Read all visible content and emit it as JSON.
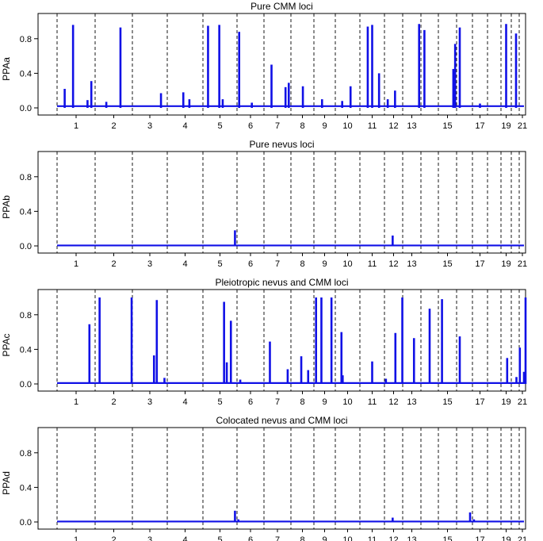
{
  "chart_data": [
    {
      "type": "line",
      "title": "Pure CMM loci",
      "ylabel": "PPAa",
      "ylim": [
        0,
        1.0
      ],
      "yticks": [
        "0.0",
        "0.4",
        "0.8"
      ],
      "chromosome_labels": [
        "1",
        "2",
        "3",
        "4",
        "5",
        "6",
        "7",
        "8",
        "9",
        "10",
        "11",
        "12",
        "13",
        "15",
        "17",
        "19",
        "21"
      ],
      "baseline": 0.02,
      "peaks": [
        {
          "chrom": 1,
          "pos": 0.2,
          "value": 0.22
        },
        {
          "chrom": 1,
          "pos": 0.42,
          "value": 0.96
        },
        {
          "chrom": 1,
          "pos": 0.8,
          "value": 0.09
        },
        {
          "chrom": 1,
          "pos": 0.9,
          "value": 0.31
        },
        {
          "chrom": 2,
          "pos": 0.3,
          "value": 0.07
        },
        {
          "chrom": 2,
          "pos": 0.68,
          "value": 0.93
        },
        {
          "chrom": 3,
          "pos": 0.82,
          "value": 0.17
        },
        {
          "chrom": 4,
          "pos": 0.45,
          "value": 0.18
        },
        {
          "chrom": 4,
          "pos": 0.62,
          "value": 0.1
        },
        {
          "chrom": 5,
          "pos": 0.15,
          "value": 0.95
        },
        {
          "chrom": 5,
          "pos": 0.48,
          "value": 0.96
        },
        {
          "chrom": 5,
          "pos": 0.58,
          "value": 0.1
        },
        {
          "chrom": 6,
          "pos": 0.08,
          "value": 0.88
        },
        {
          "chrom": 6,
          "pos": 0.55,
          "value": 0.06
        },
        {
          "chrom": 7,
          "pos": 0.28,
          "value": 0.5
        },
        {
          "chrom": 7,
          "pos": 0.8,
          "value": 0.24
        },
        {
          "chrom": 7,
          "pos": 0.92,
          "value": 0.29
        },
        {
          "chrom": 8,
          "pos": 0.52,
          "value": 0.25
        },
        {
          "chrom": 9,
          "pos": 0.38,
          "value": 0.1
        },
        {
          "chrom": 10,
          "pos": 0.28,
          "value": 0.08
        },
        {
          "chrom": 10,
          "pos": 0.62,
          "value": 0.25
        },
        {
          "chrom": 11,
          "pos": 0.32,
          "value": 0.94
        },
        {
          "chrom": 11,
          "pos": 0.5,
          "value": 0.96
        },
        {
          "chrom": 11,
          "pos": 0.78,
          "value": 0.4
        },
        {
          "chrom": 12,
          "pos": 0.18,
          "value": 0.1
        },
        {
          "chrom": 12,
          "pos": 0.58,
          "value": 0.2
        },
        {
          "chrom": 13,
          "pos": 0.9,
          "value": 0.97
        },
        {
          "chrom": 14,
          "pos": 0.2,
          "value": 0.9
        },
        {
          "chrom": 15,
          "pos": 0.82,
          "value": 0.45
        },
        {
          "chrom": 15,
          "pos": 0.92,
          "value": 0.74
        },
        {
          "chrom": 16,
          "pos": 0.2,
          "value": 0.93
        },
        {
          "chrom": 17,
          "pos": 0.5,
          "value": 0.05
        },
        {
          "chrom": 19,
          "pos": 0.5,
          "value": 0.97
        },
        {
          "chrom": 20,
          "pos": 0.6,
          "value": 0.86
        }
      ]
    },
    {
      "type": "line",
      "title": "Pure nevus loci",
      "ylabel": "PPAb",
      "ylim": [
        0,
        1.0
      ],
      "yticks": [
        "0.0",
        "0.4",
        "0.8"
      ],
      "chromosome_labels": [
        "1",
        "2",
        "3",
        "4",
        "5",
        "6",
        "7",
        "8",
        "9",
        "10",
        "11",
        "12",
        "13",
        "15",
        "17",
        "19",
        "21"
      ],
      "baseline": 0.005,
      "peaks": [
        {
          "chrom": 5,
          "pos": 0.94,
          "value": 0.18
        },
        {
          "chrom": 12,
          "pos": 0.45,
          "value": 0.12
        }
      ]
    },
    {
      "type": "line",
      "title": "Pleiotropic nevus and CMM loci",
      "ylabel": "PPAc",
      "ylim": [
        0,
        1.0
      ],
      "yticks": [
        "0.0",
        "0.4",
        "0.8"
      ],
      "chromosome_labels": [
        "1",
        "2",
        "3",
        "4",
        "5",
        "6",
        "7",
        "8",
        "9",
        "10",
        "11",
        "12",
        "13",
        "15",
        "17",
        "19",
        "21"
      ],
      "baseline": 0.01,
      "peaks": [
        {
          "chrom": 1,
          "pos": 0.85,
          "value": 0.69
        },
        {
          "chrom": 2,
          "pos": 0.12,
          "value": 1.0
        },
        {
          "chrom": 2,
          "pos": 0.98,
          "value": 1.0
        },
        {
          "chrom": 3,
          "pos": 0.62,
          "value": 0.33
        },
        {
          "chrom": 3,
          "pos": 0.7,
          "value": 0.97
        },
        {
          "chrom": 3,
          "pos": 0.92,
          "value": 0.07
        },
        {
          "chrom": 5,
          "pos": 0.62,
          "value": 0.95
        },
        {
          "chrom": 5,
          "pos": 0.7,
          "value": 0.25
        },
        {
          "chrom": 5,
          "pos": 0.82,
          "value": 0.73
        },
        {
          "chrom": 6,
          "pos": 0.12,
          "value": 0.05
        },
        {
          "chrom": 7,
          "pos": 0.22,
          "value": 0.49
        },
        {
          "chrom": 7,
          "pos": 0.88,
          "value": 0.17
        },
        {
          "chrom": 8,
          "pos": 0.45,
          "value": 0.32
        },
        {
          "chrom": 8,
          "pos": 0.75,
          "value": 0.16
        },
        {
          "chrom": 9,
          "pos": 0.1,
          "value": 1.0
        },
        {
          "chrom": 9,
          "pos": 0.35,
          "value": 1.0
        },
        {
          "chrom": 9,
          "pos": 0.82,
          "value": 1.0
        },
        {
          "chrom": 10,
          "pos": 0.25,
          "value": 0.6
        },
        {
          "chrom": 10,
          "pos": 0.3,
          "value": 0.1
        },
        {
          "chrom": 11,
          "pos": 0.5,
          "value": 0.26
        },
        {
          "chrom": 12,
          "pos": 0.08,
          "value": 0.06
        },
        {
          "chrom": 12,
          "pos": 0.6,
          "value": 0.59
        },
        {
          "chrom": 12,
          "pos": 0.98,
          "value": 1.0
        },
        {
          "chrom": 13,
          "pos": 0.62,
          "value": 0.53
        },
        {
          "chrom": 14,
          "pos": 0.5,
          "value": 0.87
        },
        {
          "chrom": 15,
          "pos": 0.2,
          "value": 0.98
        },
        {
          "chrom": 16,
          "pos": 0.2,
          "value": 0.55
        },
        {
          "chrom": 19,
          "pos": 0.6,
          "value": 0.3
        },
        {
          "chrom": 20,
          "pos": 0.65,
          "value": 0.08
        },
        {
          "chrom": 21,
          "pos": 0.1,
          "value": 0.42
        },
        {
          "chrom": 21,
          "pos": 0.75,
          "value": 0.14
        },
        {
          "chrom": 22,
          "pos": 0.4,
          "value": 1.0
        }
      ]
    },
    {
      "type": "line",
      "title": "Colocated nevus and CMM loci",
      "ylabel": "PPAd",
      "ylim": [
        0,
        1.0
      ],
      "yticks": [
        "0.0",
        "0.4",
        "0.8"
      ],
      "chromosome_labels": [
        "1",
        "2",
        "3",
        "4",
        "5",
        "6",
        "7",
        "8",
        "9",
        "10",
        "11",
        "12",
        "13",
        "15",
        "17",
        "19",
        "21"
      ],
      "baseline": 0.005,
      "peaks": [
        {
          "chrom": 5,
          "pos": 0.94,
          "value": 0.13
        },
        {
          "chrom": 6,
          "pos": 0.05,
          "value": 0.03
        },
        {
          "chrom": 12,
          "pos": 0.45,
          "value": 0.05
        },
        {
          "chrom": 16,
          "pos": 0.85,
          "value": 0.11
        },
        {
          "chrom": 17,
          "pos": 0.1,
          "value": 0.03
        }
      ]
    }
  ],
  "style": {
    "line_color": "#1010e6",
    "axis_color": "#000000",
    "boundary_color": "#000000"
  }
}
